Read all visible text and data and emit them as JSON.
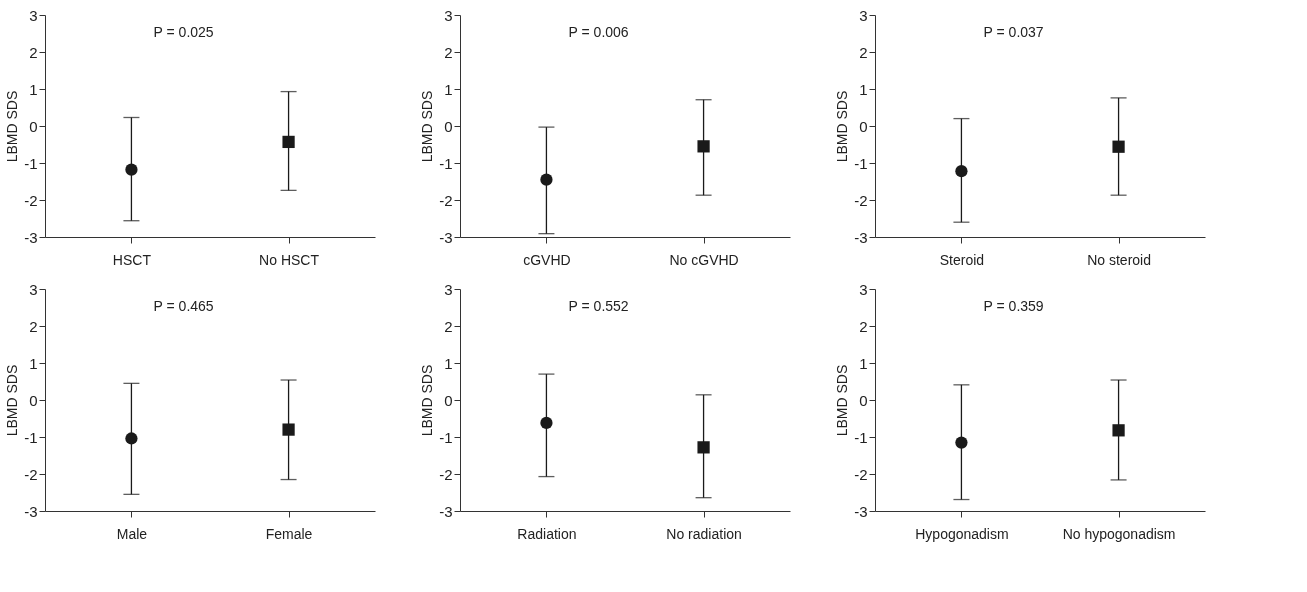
{
  "chart_data": [
    {
      "type": "scatter",
      "categories": [
        "HSCT",
        "No HSCT"
      ],
      "ylabel": "LBMD SDS",
      "ylim": [
        -3,
        3
      ],
      "yticks": [
        -3,
        -2,
        -1,
        0,
        1,
        2,
        3
      ],
      "grid": false,
      "annotations": [
        "P = 0.025"
      ],
      "series": [
        {
          "color": "#1a1a1a",
          "marker": "circle",
          "values": [
            -1.18,
            null
          ],
          "errors": [
            [
              -2.56,
              0.23
            ],
            null
          ]
        },
        {
          "color": "#1a1a1a",
          "marker": "square",
          "values": [
            null,
            -0.43
          ],
          "errors": [
            null,
            [
              -1.74,
              0.93
            ]
          ]
        }
      ]
    },
    {
      "type": "scatter",
      "categories": [
        "cGVHD",
        "No cGVHD"
      ],
      "ylabel": "LBMD SDS",
      "ylim": [
        -3,
        3
      ],
      "yticks": [
        -3,
        -2,
        -1,
        0,
        1,
        2,
        3
      ],
      "grid": false,
      "annotations": [
        "P = 0.006"
      ],
      "series": [
        {
          "color": "#1a1a1a",
          "marker": "circle",
          "values": [
            -1.45,
            null
          ],
          "errors": [
            [
              -2.91,
              -0.03
            ],
            null
          ]
        },
        {
          "color": "#1a1a1a",
          "marker": "square",
          "values": [
            null,
            -0.55
          ],
          "errors": [
            null,
            [
              -1.87,
              0.71
            ]
          ]
        }
      ]
    },
    {
      "type": "scatter",
      "categories": [
        "Steroid",
        "No steroid"
      ],
      "ylabel": "LBMD SDS",
      "ylim": [
        -3,
        3
      ],
      "yticks": [
        -3,
        -2,
        -1,
        0,
        1,
        2,
        3
      ],
      "grid": false,
      "annotations": [
        "P = 0.037"
      ],
      "series": [
        {
          "color": "#1a1a1a",
          "marker": "circle",
          "values": [
            -1.22,
            null
          ],
          "errors": [
            [
              -2.6,
              0.2
            ],
            null
          ]
        },
        {
          "color": "#1a1a1a",
          "marker": "square",
          "values": [
            null,
            -0.56
          ],
          "errors": [
            null,
            [
              -1.87,
              0.76
            ]
          ]
        }
      ]
    },
    {
      "type": "scatter",
      "categories": [
        "Male",
        "Female"
      ],
      "ylabel": "LBMD SDS",
      "ylim": [
        -3,
        3
      ],
      "yticks": [
        -3,
        -2,
        -1,
        0,
        1,
        2,
        3
      ],
      "grid": false,
      "annotations": [
        "P = 0.465"
      ],
      "series": [
        {
          "color": "#1a1a1a",
          "marker": "circle",
          "values": [
            -1.04,
            null
          ],
          "errors": [
            [
              -2.55,
              0.45
            ],
            null
          ]
        },
        {
          "color": "#1a1a1a",
          "marker": "square",
          "values": [
            null,
            -0.8
          ],
          "errors": [
            null,
            [
              -2.15,
              0.54
            ]
          ]
        }
      ]
    },
    {
      "type": "scatter",
      "categories": [
        "Radiation",
        "No radiation"
      ],
      "ylabel": "LBMD SDS",
      "ylim": [
        -3,
        3
      ],
      "yticks": [
        -3,
        -2,
        -1,
        0,
        1,
        2,
        3
      ],
      "grid": false,
      "annotations": [
        "P = 0.552"
      ],
      "series": [
        {
          "color": "#1a1a1a",
          "marker": "circle",
          "values": [
            -0.62,
            null
          ],
          "errors": [
            [
              -2.07,
              0.7
            ],
            null
          ]
        },
        {
          "color": "#1a1a1a",
          "marker": "square",
          "values": [
            null,
            -1.28
          ],
          "errors": [
            null,
            [
              -2.64,
              0.14
            ]
          ]
        }
      ]
    },
    {
      "type": "scatter",
      "categories": [
        "Hypogonadism",
        "No hypogonadism"
      ],
      "ylabel": "LBMD SDS",
      "ylim": [
        -3,
        3
      ],
      "yticks": [
        -3,
        -2,
        -1,
        0,
        1,
        2,
        3
      ],
      "grid": false,
      "annotations": [
        "P = 0.359"
      ],
      "series": [
        {
          "color": "#1a1a1a",
          "marker": "circle",
          "values": [
            -1.15,
            null
          ],
          "errors": [
            [
              -2.69,
              0.41
            ],
            null
          ]
        },
        {
          "color": "#1a1a1a",
          "marker": "square",
          "values": [
            null,
            -0.82
          ],
          "errors": [
            null,
            [
              -2.16,
              0.54
            ]
          ]
        }
      ]
    }
  ]
}
